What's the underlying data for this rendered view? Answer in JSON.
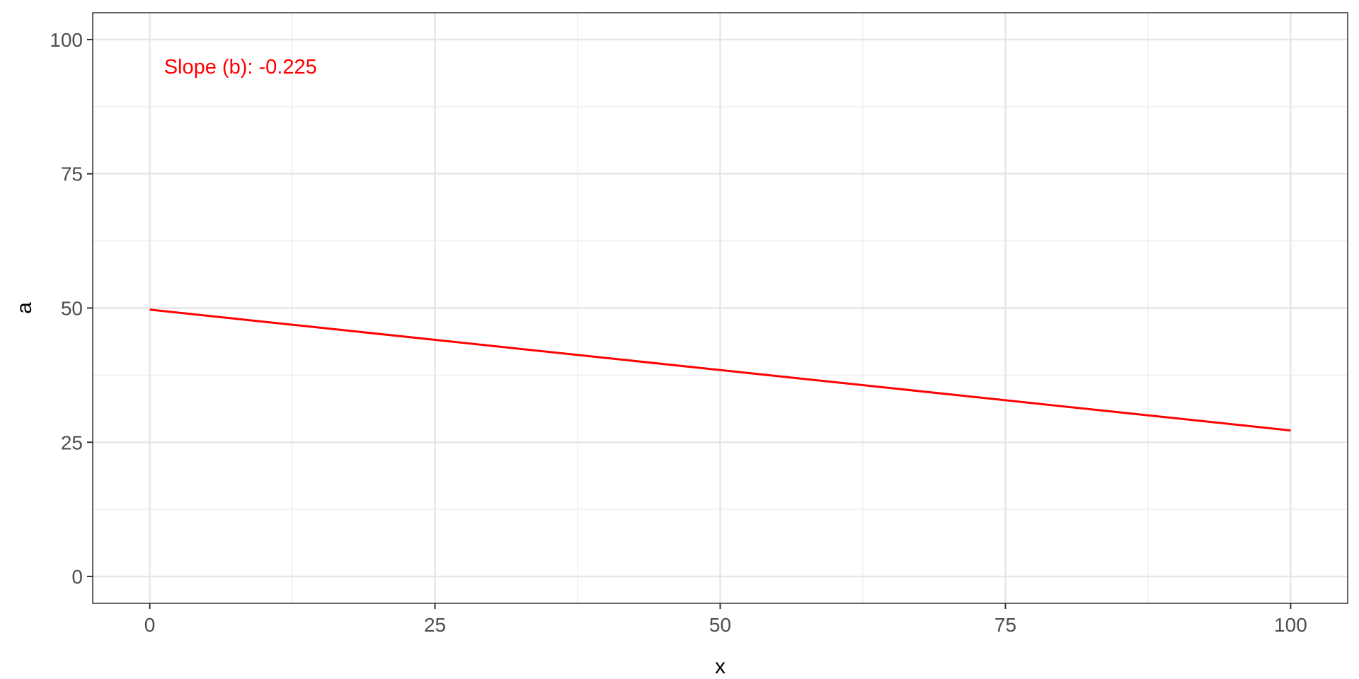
{
  "chart_data": {
    "type": "line",
    "title": "",
    "xlabel": "x",
    "ylabel": "a",
    "xlim": [
      -5,
      105
    ],
    "ylim": [
      -5,
      105
    ],
    "x_ticks": [
      0,
      25,
      50,
      75,
      100
    ],
    "y_ticks": [
      0,
      25,
      50,
      75,
      100
    ],
    "x_tick_labels": [
      "0",
      "25",
      "50",
      "75",
      "100"
    ],
    "y_tick_labels": [
      "0",
      "25",
      "50",
      "75",
      "100"
    ],
    "grid": true,
    "theme": "bw",
    "series": [
      {
        "x": [
          0,
          100
        ],
        "y": [
          49.7,
          27.2
        ],
        "color": "#ff0000"
      }
    ],
    "annotation": {
      "text": "Slope (b): -0.225",
      "x": 1,
      "y": 95,
      "color": "#ff0000"
    }
  }
}
